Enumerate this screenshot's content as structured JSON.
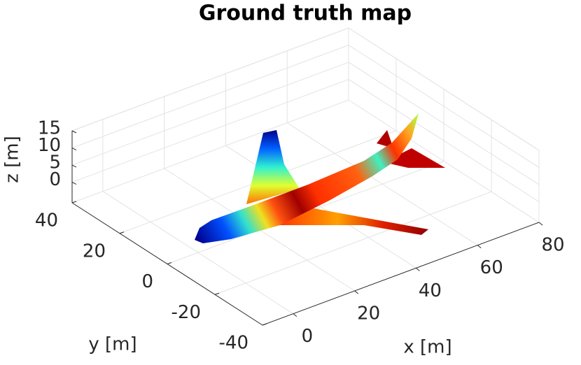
{
  "chart_data": {
    "type": "surface3d",
    "title": "Ground truth map",
    "xlabel": "x [m]",
    "ylabel": "y [m]",
    "zlabel": "z [m]",
    "xlim": [
      -10,
      80
    ],
    "ylim": [
      -40,
      40
    ],
    "zlim": [
      -6,
      15
    ],
    "xticks": [
      0,
      20,
      40,
      60,
      80
    ],
    "yticks": [
      -40,
      -20,
      0,
      20,
      40
    ],
    "zticks": [
      0,
      5,
      10,
      15
    ],
    "grid": true
  }
}
